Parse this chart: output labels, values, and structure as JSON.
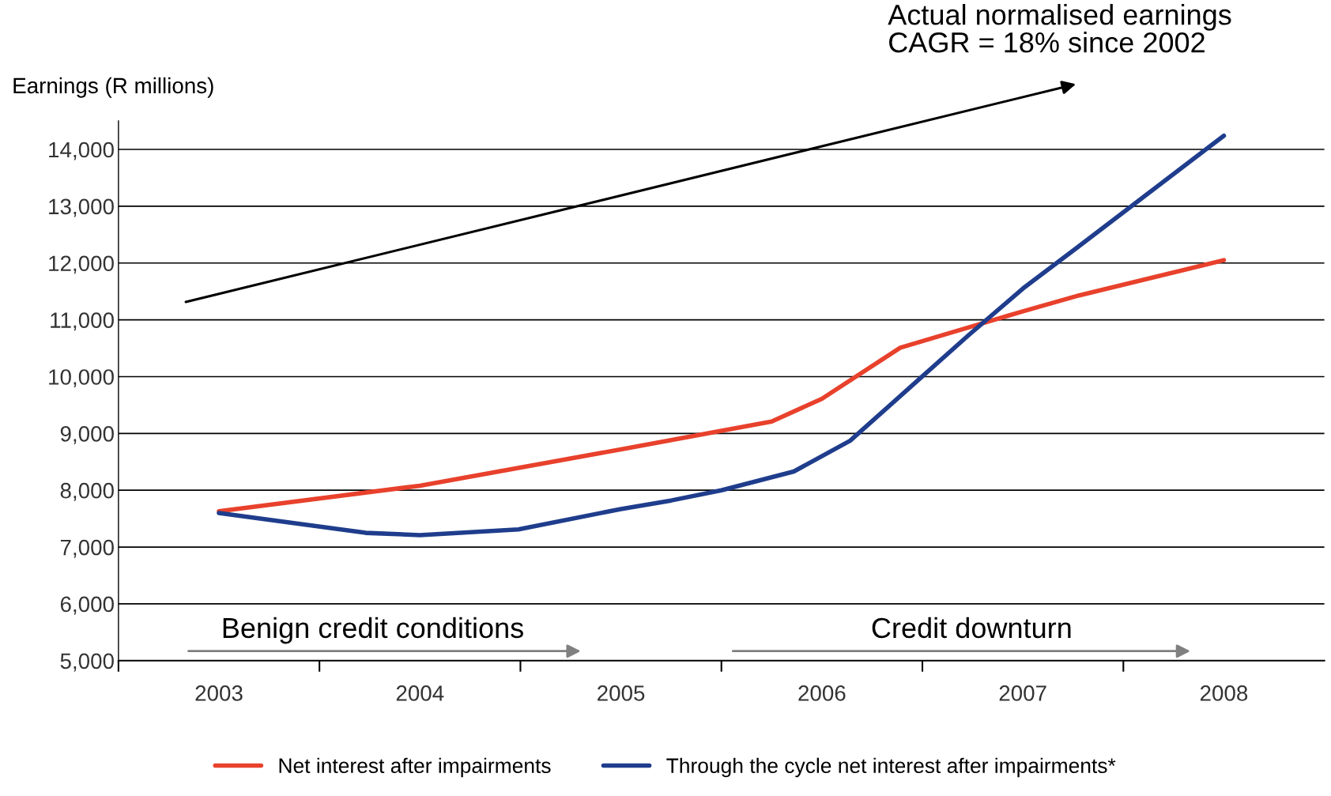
{
  "chart_data": {
    "type": "line",
    "ylabel": "Earnings (R millions)",
    "annotations": [
      "Actual normalised earnings\nCAGR = 18% since 2002",
      "Benign credit conditions",
      "Credit downturn"
    ],
    "xlim": [
      2002.5,
      2008.5
    ],
    "xticks": [
      {
        "value": 2002.5,
        "label": null
      },
      {
        "value": 2003,
        "label": "2003"
      },
      {
        "value": 2003.5,
        "label": null
      },
      {
        "value": 2004,
        "label": "2004"
      },
      {
        "value": 2004.5,
        "label": null
      },
      {
        "value": 2005,
        "label": "2005"
      },
      {
        "value": 2005.5,
        "label": null
      },
      {
        "value": 2006,
        "label": "2006"
      },
      {
        "value": 2006.5,
        "label": null
      },
      {
        "value": 2007,
        "label": "2007"
      },
      {
        "value": 2007.5,
        "label": null
      },
      {
        "value": 2008,
        "label": "2008"
      }
    ],
    "ylim": [
      5000,
      14500
    ],
    "yticks": [
      {
        "value": 5000,
        "label": "5,000"
      },
      {
        "value": 6000,
        "label": "6,000"
      },
      {
        "value": 7000,
        "label": "7,000"
      },
      {
        "value": 8000,
        "label": "8,000"
      },
      {
        "value": 9000,
        "label": "9,000"
      },
      {
        "value": 10000,
        "label": "10,000"
      },
      {
        "value": 11000,
        "label": "11,000"
      },
      {
        "value": 12000,
        "label": "12,000"
      },
      {
        "value": 13000,
        "label": "13,000"
      },
      {
        "value": 14000,
        "label": "14,000"
      }
    ],
    "grid": "y",
    "legend": "bottom",
    "marker": "none",
    "line_style": "solid",
    "series": [
      {
        "name": "Net interest after impairments",
        "color": "#e8412c",
        "x": [
          2003,
          2004,
          2005,
          2005.75,
          2006,
          2006.39,
          2007,
          2007.28,
          2008
        ],
        "values": [
          7630,
          8080,
          8720,
          9210,
          9610,
          10510,
          11150,
          11430,
          12050
        ]
      },
      {
        "name": "Through the cycle net interest after impairments*",
        "color": "#1f3d8c",
        "x": [
          2003,
          2003.73,
          2004,
          2004.49,
          2005,
          2005.25,
          2005.5,
          2005.86,
          2006.14,
          2006.47,
          2006.73,
          2007,
          2007.28,
          2008
        ],
        "values": [
          7600,
          7250,
          7210,
          7310,
          7670,
          7820,
          8000,
          8330,
          8870,
          9910,
          10730,
          11550,
          12300,
          14240
        ]
      }
    ]
  }
}
